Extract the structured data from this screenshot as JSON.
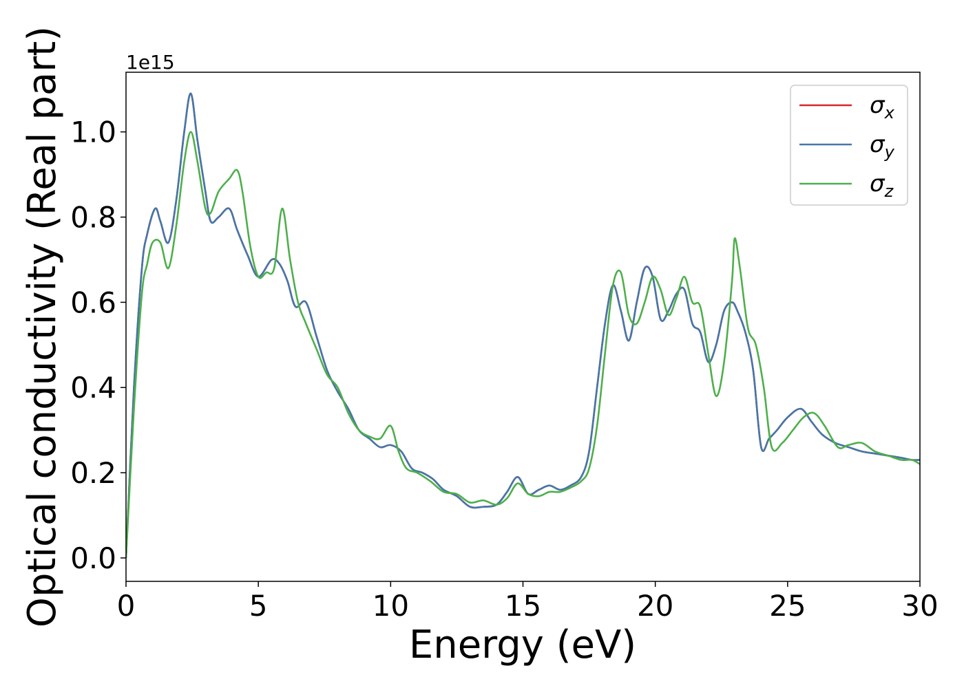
{
  "chart_data": {
    "type": "line",
    "title": "",
    "xlabel": "Energy (eV)",
    "ylabel": "Optical conductivity (Real part)",
    "offset_label": "1e15",
    "xlim": [
      0,
      30
    ],
    "ylim": [
      -0.055,
      1.14
    ],
    "x_ticks": [
      0,
      5,
      10,
      15,
      20,
      25,
      30
    ],
    "y_ticks": [
      0.0,
      0.2,
      0.4,
      0.6,
      0.8,
      1.0
    ],
    "y_tick_labels": [
      "0.0",
      "0.2",
      "0.4",
      "0.6",
      "0.8",
      "1.0"
    ],
    "grid": false,
    "legend_position": "top-right",
    "series": [
      {
        "name": "σx",
        "symbol": "σ",
        "subscript": "x",
        "color": "#d62728",
        "x": [
          0,
          0.3,
          0.6,
          0.8,
          1.1,
          1.3,
          1.6,
          1.9,
          2.2,
          2.45,
          2.7,
          3.0,
          3.2,
          3.5,
          3.9,
          4.2,
          4.6,
          5.0,
          5.5,
          5.8,
          6.1,
          6.4,
          6.8,
          7.2,
          7.6,
          8.0,
          8.4,
          8.8,
          9.2,
          9.6,
          10.0,
          10.4,
          10.8,
          11.2,
          11.6,
          12.0,
          12.5,
          13.0,
          13.5,
          14.0,
          14.4,
          14.8,
          15.2,
          15.6,
          16.0,
          16.4,
          16.8,
          17.2,
          17.5,
          17.8,
          18.1,
          18.4,
          18.7,
          19.0,
          19.3,
          19.6,
          19.9,
          20.2,
          20.5,
          20.8,
          21.1,
          21.4,
          21.7,
          22.0,
          22.3,
          22.6,
          22.9,
          23.1,
          23.4,
          23.7,
          24.0,
          24.3,
          24.6,
          25.0,
          25.5,
          25.9,
          26.3,
          26.8,
          27.3,
          27.8,
          28.3,
          28.8,
          29.3,
          29.7,
          30.0
        ],
        "values": [
          0.0,
          0.4,
          0.68,
          0.76,
          0.82,
          0.79,
          0.74,
          0.84,
          1.0,
          1.09,
          0.98,
          0.86,
          0.79,
          0.8,
          0.82,
          0.77,
          0.71,
          0.66,
          0.7,
          0.69,
          0.65,
          0.59,
          0.6,
          0.52,
          0.44,
          0.39,
          0.35,
          0.3,
          0.28,
          0.26,
          0.265,
          0.25,
          0.21,
          0.2,
          0.185,
          0.16,
          0.145,
          0.12,
          0.12,
          0.125,
          0.155,
          0.19,
          0.15,
          0.16,
          0.17,
          0.16,
          0.17,
          0.19,
          0.25,
          0.4,
          0.55,
          0.64,
          0.58,
          0.51,
          0.6,
          0.68,
          0.66,
          0.56,
          0.58,
          0.62,
          0.63,
          0.55,
          0.53,
          0.46,
          0.5,
          0.58,
          0.6,
          0.58,
          0.53,
          0.44,
          0.26,
          0.28,
          0.3,
          0.33,
          0.35,
          0.32,
          0.29,
          0.27,
          0.26,
          0.25,
          0.245,
          0.24,
          0.235,
          0.23,
          0.23
        ]
      },
      {
        "name": "σy",
        "symbol": "σ",
        "subscript": "y",
        "color": "#4477aa",
        "x": [
          0,
          0.3,
          0.6,
          0.8,
          1.1,
          1.3,
          1.6,
          1.9,
          2.2,
          2.45,
          2.7,
          3.0,
          3.2,
          3.5,
          3.9,
          4.2,
          4.6,
          5.0,
          5.5,
          5.8,
          6.1,
          6.4,
          6.8,
          7.2,
          7.6,
          8.0,
          8.4,
          8.8,
          9.2,
          9.6,
          10.0,
          10.4,
          10.8,
          11.2,
          11.6,
          12.0,
          12.5,
          13.0,
          13.5,
          14.0,
          14.4,
          14.8,
          15.2,
          15.6,
          16.0,
          16.4,
          16.8,
          17.2,
          17.5,
          17.8,
          18.1,
          18.4,
          18.7,
          19.0,
          19.3,
          19.6,
          19.9,
          20.2,
          20.5,
          20.8,
          21.1,
          21.4,
          21.7,
          22.0,
          22.3,
          22.6,
          22.9,
          23.1,
          23.4,
          23.7,
          24.0,
          24.3,
          24.6,
          25.0,
          25.5,
          25.9,
          26.3,
          26.8,
          27.3,
          27.8,
          28.3,
          28.8,
          29.3,
          29.7,
          30.0
        ],
        "values": [
          0.0,
          0.4,
          0.68,
          0.76,
          0.82,
          0.79,
          0.74,
          0.84,
          1.0,
          1.09,
          0.98,
          0.86,
          0.79,
          0.8,
          0.82,
          0.77,
          0.71,
          0.66,
          0.7,
          0.69,
          0.65,
          0.59,
          0.6,
          0.52,
          0.44,
          0.39,
          0.35,
          0.3,
          0.28,
          0.26,
          0.265,
          0.25,
          0.21,
          0.2,
          0.185,
          0.16,
          0.145,
          0.12,
          0.12,
          0.125,
          0.155,
          0.19,
          0.15,
          0.16,
          0.17,
          0.16,
          0.17,
          0.19,
          0.25,
          0.4,
          0.55,
          0.64,
          0.58,
          0.51,
          0.6,
          0.68,
          0.66,
          0.56,
          0.58,
          0.62,
          0.63,
          0.55,
          0.53,
          0.46,
          0.5,
          0.58,
          0.6,
          0.58,
          0.53,
          0.44,
          0.26,
          0.28,
          0.3,
          0.33,
          0.35,
          0.32,
          0.29,
          0.27,
          0.26,
          0.25,
          0.245,
          0.24,
          0.235,
          0.23,
          0.23
        ]
      },
      {
        "name": "σz",
        "symbol": "σ",
        "subscript": "z",
        "color": "#4daf4a",
        "x": [
          0,
          0.3,
          0.6,
          0.8,
          1.0,
          1.3,
          1.6,
          1.9,
          2.2,
          2.45,
          2.7,
          3.0,
          3.2,
          3.5,
          3.9,
          4.2,
          4.4,
          4.7,
          5.0,
          5.3,
          5.6,
          5.9,
          6.2,
          6.5,
          6.8,
          7.2,
          7.6,
          8.0,
          8.4,
          8.8,
          9.2,
          9.6,
          10.0,
          10.3,
          10.6,
          11.0,
          11.5,
          12.0,
          12.5,
          13.0,
          13.5,
          14.0,
          14.4,
          14.8,
          15.2,
          15.6,
          16.0,
          16.4,
          16.8,
          17.2,
          17.5,
          17.8,
          18.1,
          18.4,
          18.7,
          19.0,
          19.3,
          19.6,
          19.9,
          20.2,
          20.5,
          20.8,
          21.1,
          21.4,
          21.7,
          22.0,
          22.3,
          22.6,
          22.9,
          23.0,
          23.2,
          23.5,
          23.8,
          24.1,
          24.4,
          24.8,
          25.2,
          25.6,
          26.0,
          26.4,
          26.9,
          27.3,
          27.8,
          28.3,
          28.8,
          29.3,
          29.7,
          30.0
        ],
        "values": [
          0.0,
          0.35,
          0.62,
          0.69,
          0.74,
          0.74,
          0.68,
          0.78,
          0.93,
          1.0,
          0.93,
          0.82,
          0.81,
          0.86,
          0.89,
          0.91,
          0.86,
          0.73,
          0.66,
          0.67,
          0.68,
          0.82,
          0.7,
          0.6,
          0.55,
          0.49,
          0.43,
          0.4,
          0.34,
          0.3,
          0.285,
          0.28,
          0.31,
          0.25,
          0.21,
          0.2,
          0.18,
          0.155,
          0.15,
          0.13,
          0.135,
          0.125,
          0.14,
          0.175,
          0.15,
          0.145,
          0.155,
          0.155,
          0.165,
          0.18,
          0.21,
          0.31,
          0.48,
          0.64,
          0.67,
          0.57,
          0.55,
          0.6,
          0.66,
          0.63,
          0.57,
          0.61,
          0.66,
          0.6,
          0.59,
          0.48,
          0.38,
          0.46,
          0.65,
          0.75,
          0.68,
          0.54,
          0.5,
          0.4,
          0.26,
          0.27,
          0.3,
          0.33,
          0.34,
          0.31,
          0.26,
          0.265,
          0.27,
          0.25,
          0.24,
          0.23,
          0.23,
          0.22
        ]
      }
    ]
  }
}
